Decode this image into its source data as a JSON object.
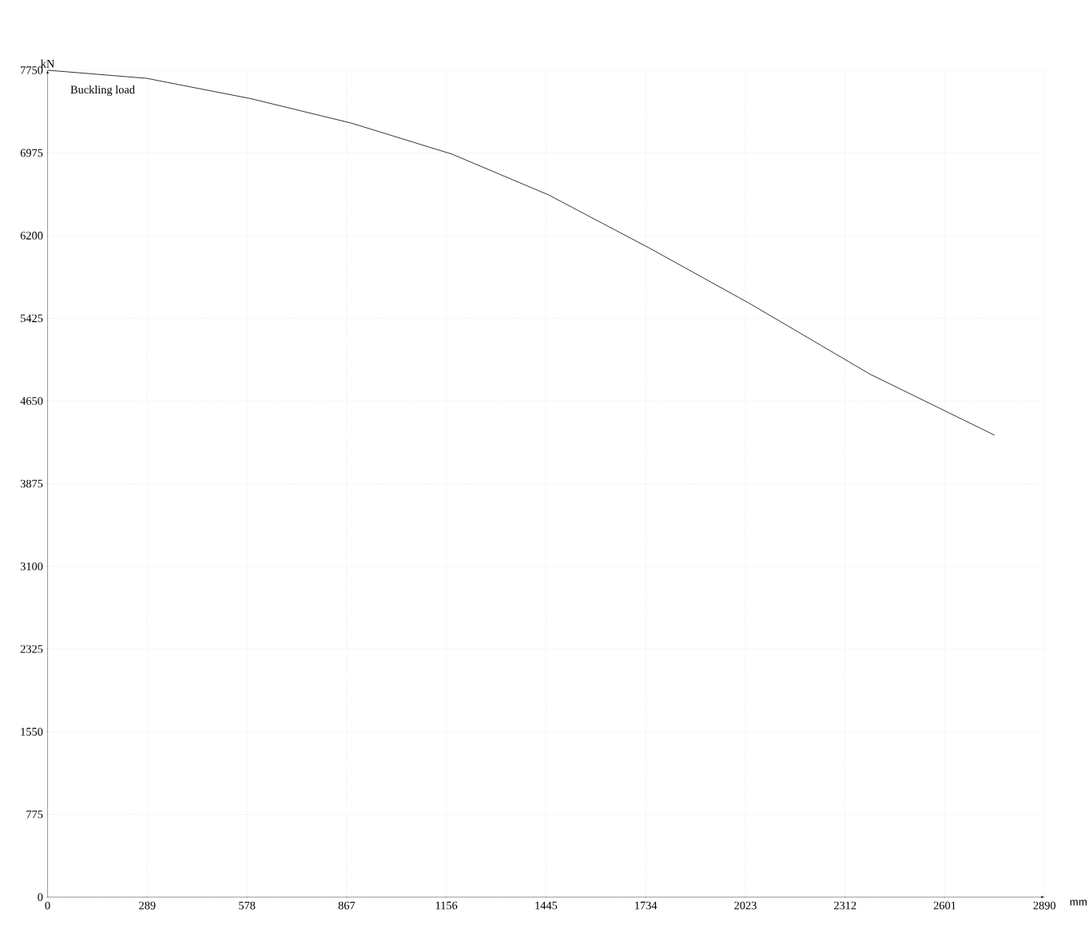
{
  "chart_data": {
    "type": "line",
    "xlabel": "mm",
    "ylabel": "kN",
    "annotations": [
      "Buckling load"
    ],
    "x": [
      0,
      287,
      590,
      881,
      1172,
      1452,
      1743,
      2034,
      2384,
      2745
    ],
    "series": [
      {
        "color": "#000000",
        "values": [
          7750,
          7674,
          7483,
          7254,
          6964,
          6582,
          6086,
          5566,
          4902,
          4330
        ]
      }
    ],
    "xlim": [
      0,
      2890
    ],
    "xticks": [
      0,
      289,
      578,
      867,
      1156,
      1445,
      1734,
      2023,
      2312,
      2601,
      2890
    ],
    "ylim": [
      0,
      7750
    ],
    "yticks": [
      0,
      775,
      1550,
      2325,
      3100,
      3875,
      4650,
      5425,
      6200,
      6975,
      7750
    ],
    "grid": true,
    "line_style": "solid",
    "marker": "none"
  }
}
